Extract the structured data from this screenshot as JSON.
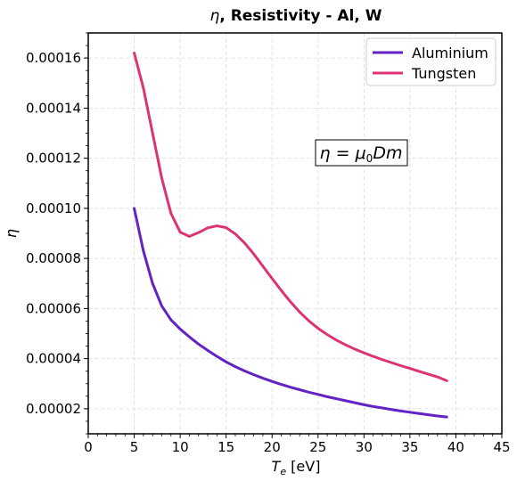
{
  "chart_data": {
    "type": "line",
    "title_prefix": "η",
    "title": ", Resistivity - Al, W",
    "xlabel_symbol": "T",
    "xlabel_sub": "e",
    "xlabel_unit": " [eV]",
    "ylabel": "η",
    "xlim": [
      0,
      45
    ],
    "ylim": [
      1e-05,
      0.00017
    ],
    "x_ticks": [
      0,
      5,
      10,
      15,
      20,
      25,
      30,
      35,
      40,
      45
    ],
    "y_ticks": [
      2e-05,
      4e-05,
      6e-05,
      8e-05,
      0.0001,
      0.00012,
      0.00014,
      0.00016
    ],
    "y_tick_labels": [
      "0.00002",
      "0.00004",
      "0.00006",
      "0.00008",
      "0.00010",
      "0.00012",
      "0.00014",
      "0.00016"
    ],
    "grid": true,
    "legend_position": "top-right",
    "annotation": {
      "lhs": "η = μ",
      "sub": "0",
      "rhs": "Dm",
      "x": 30,
      "y": 0.000121
    },
    "x": [
      5,
      6,
      7,
      8,
      9,
      10,
      11,
      12,
      13,
      14,
      15,
      16,
      17,
      18,
      19,
      20,
      21,
      22,
      23,
      24,
      25,
      26,
      27,
      28,
      29,
      30,
      31,
      32,
      33,
      34,
      35,
      36,
      37,
      38,
      39
    ],
    "series": [
      {
        "name": "Aluminium",
        "color": "#6322c4",
        "values": [
          0.0001,
          8.3e-05,
          7e-05,
          6.1e-05,
          5.55e-05,
          5.18e-05,
          4.87e-05,
          4.58e-05,
          4.33e-05,
          4.09e-05,
          3.87e-05,
          3.68e-05,
          3.51e-05,
          3.36e-05,
          3.22e-05,
          3.09e-05,
          2.97e-05,
          2.86e-05,
          2.76e-05,
          2.66e-05,
          2.57e-05,
          2.48e-05,
          2.4e-05,
          2.32e-05,
          2.24e-05,
          2.16e-05,
          2.09e-05,
          2.03e-05,
          1.97e-05,
          1.91e-05,
          1.86e-05,
          1.81e-05,
          1.76e-05,
          1.71e-05,
          1.67e-05
        ]
      },
      {
        "name": "Tungsten",
        "color": "#dc3375",
        "values": [
          0.000162,
          0.000148,
          0.00013,
          0.000112,
          9.8e-05,
          9.05e-05,
          8.88e-05,
          9.03e-05,
          9.22e-05,
          9.3e-05,
          9.23e-05,
          8.98e-05,
          8.62e-05,
          8.18e-05,
          7.69e-05,
          7.2e-05,
          6.72e-05,
          6.27e-05,
          5.86e-05,
          5.51e-05,
          5.21e-05,
          4.96e-05,
          4.74e-05,
          4.55e-05,
          4.38e-05,
          4.23e-05,
          4.09e-05,
          3.96e-05,
          3.84e-05,
          3.72e-05,
          3.61e-05,
          3.49e-05,
          3.38e-05,
          3.27e-05,
          3.12e-05
        ]
      }
    ]
  }
}
